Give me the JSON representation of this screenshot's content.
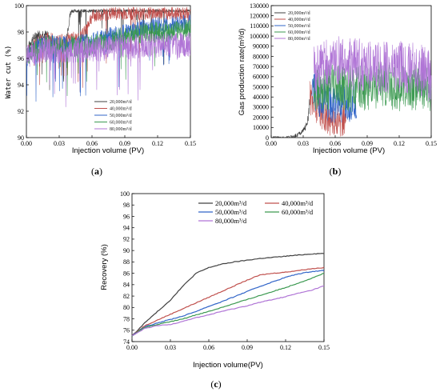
{
  "chart_data": [
    {
      "panel": "a",
      "type": "line",
      "xlabel": "Injection volume (PV)",
      "ylabel": "Water cut (%)",
      "xlim": [
        0.0,
        0.15
      ],
      "ylim": [
        90,
        100
      ],
      "xticks": [
        "0.00",
        "0.03",
        "0.06",
        "0.09",
        "0.12",
        "0.15"
      ],
      "yticks": [
        "90",
        "92",
        "94",
        "96",
        "98",
        "100"
      ],
      "legend_position": "lower-center",
      "series": [
        {
          "name": "20,000m³/d",
          "color": "#404040",
          "x": [
            0,
            0.005,
            0.01,
            0.015,
            0.02,
            0.025,
            0.03,
            0.035,
            0.04,
            0.041,
            0.05,
            0.06,
            0.08,
            0.1,
            0.12,
            0.15
          ],
          "y": [
            96.5,
            97.4,
            97.8,
            97.9,
            97.7,
            97.2,
            96.6,
            96.8,
            99.3,
            99.6,
            99.6,
            99.6,
            99.6,
            99.6,
            99.6,
            99.6
          ]
        },
        {
          "name": "40,000m³/d",
          "color": "#c0504d",
          "x": [
            0,
            0.01,
            0.02,
            0.03,
            0.04,
            0.05,
            0.06,
            0.07,
            0.08,
            0.09,
            0.1,
            0.12,
            0.15
          ],
          "y": [
            96.4,
            97.2,
            97.5,
            97.3,
            97.5,
            97.6,
            99.2,
            99.3,
            99.4,
            99.4,
            99.4,
            99.4,
            99.4
          ]
        },
        {
          "name": "50,000m³/d",
          "color": "#3064c8",
          "x": [
            0,
            0.01,
            0.02,
            0.03,
            0.04,
            0.06,
            0.08,
            0.1,
            0.12,
            0.14,
            0.15
          ],
          "y": [
            96.3,
            97.0,
            97.2,
            97.0,
            97.1,
            97.3,
            97.8,
            98.2,
            98.5,
            98.6,
            98.8
          ]
        },
        {
          "name": "60,000m³/d",
          "color": "#3d9a52",
          "x": [
            0,
            0.01,
            0.02,
            0.03,
            0.04,
            0.06,
            0.08,
            0.1,
            0.12,
            0.14,
            0.15
          ],
          "y": [
            96.2,
            96.8,
            97.0,
            96.8,
            96.9,
            97.0,
            97.4,
            97.8,
            98.0,
            98.1,
            98.3
          ]
        },
        {
          "name": "80,000m³/d",
          "color": "#b075d6",
          "x": [
            0,
            0.01,
            0.02,
            0.03,
            0.04,
            0.06,
            0.08,
            0.1,
            0.12,
            0.14,
            0.15
          ],
          "y": [
            96.0,
            96.5,
            96.7,
            96.5,
            96.6,
            96.7,
            96.8,
            96.9,
            97.0,
            97.0,
            97.1
          ]
        }
      ]
    },
    {
      "panel": "b",
      "type": "line",
      "xlabel": "Injection volume (PV)",
      "ylabel": "Gas production rate(m³/d)",
      "xlim": [
        0.0,
        0.15
      ],
      "ylim": [
        0,
        130000
      ],
      "xticks": [
        "0.00",
        "0.03",
        "0.06",
        "0.09",
        "0.12",
        "0.15"
      ],
      "yticks": [
        "0",
        "10000",
        "20000",
        "30000",
        "40000",
        "50000",
        "60000",
        "70000",
        "80000",
        "90000",
        "100000",
        "110000",
        "120000",
        "130000"
      ],
      "legend_position": "top-left",
      "series": [
        {
          "name": "20,000m³/d",
          "color": "#404040",
          "x": [
            0.0,
            0.015,
            0.02,
            0.025,
            0.03,
            0.033,
            0.035,
            0.036
          ],
          "y": [
            0,
            0,
            1000,
            3000,
            7000,
            12000,
            20000,
            38000
          ]
        },
        {
          "name": "40,000m³/d",
          "color": "#c0504d",
          "x": [
            0.036,
            0.04,
            0.045,
            0.05,
            0.055,
            0.06,
            0.065,
            0.07
          ],
          "y": [
            40000,
            35000,
            28000,
            22000,
            18000,
            17000,
            18000,
            20000
          ]
        },
        {
          "name": "50,000m³/d",
          "color": "#3064c8",
          "x": [
            0.038,
            0.045,
            0.055,
            0.065,
            0.075,
            0.08
          ],
          "y": [
            45000,
            40000,
            35000,
            32000,
            33000,
            35000
          ]
        },
        {
          "name": "60,000m³/d",
          "color": "#3d9a52",
          "x": [
            0.04,
            0.06,
            0.08,
            0.1,
            0.12,
            0.14,
            0.15
          ],
          "y": [
            48000,
            50000,
            47000,
            52000,
            48000,
            50000,
            45000
          ]
        },
        {
          "name": "80,000m³/d",
          "color": "#b075d6",
          "x": [
            0.04,
            0.06,
            0.08,
            0.1,
            0.12,
            0.14,
            0.15
          ],
          "y": [
            65000,
            75000,
            72000,
            68000,
            70000,
            66000,
            60000
          ]
        }
      ]
    },
    {
      "panel": "c",
      "type": "line",
      "xlabel": "Injection volume(PV)",
      "ylabel": "Recovery (%)",
      "xlim": [
        0.0,
        0.15
      ],
      "ylim": [
        74,
        100
      ],
      "xticks": [
        "0.00",
        "0.03",
        "0.06",
        "0.09",
        "0.12",
        "0.15"
      ],
      "yticks": [
        "74",
        "76",
        "78",
        "80",
        "82",
        "84",
        "86",
        "88",
        "90",
        "92",
        "94",
        "96",
        "98",
        "100"
      ],
      "legend_position": "top-right",
      "series": [
        {
          "name": "20,000m³/d",
          "color": "#404040",
          "x": [
            0,
            0.01,
            0.02,
            0.03,
            0.04,
            0.05,
            0.06,
            0.07,
            0.08,
            0.09,
            0.1,
            0.11,
            0.12,
            0.13,
            0.14,
            0.15
          ],
          "y": [
            75,
            77.3,
            79.3,
            81.3,
            83.8,
            86.0,
            87.0,
            87.6,
            88.0,
            88.3,
            88.6,
            88.8,
            89.0,
            89.2,
            89.4,
            89.5
          ]
        },
        {
          "name": "40,000m³/d",
          "color": "#c0504d",
          "x": [
            0,
            0.01,
            0.02,
            0.03,
            0.04,
            0.05,
            0.06,
            0.07,
            0.08,
            0.09,
            0.1,
            0.11,
            0.12,
            0.13,
            0.14,
            0.15
          ],
          "y": [
            75,
            76.8,
            77.8,
            78.8,
            79.8,
            80.8,
            81.8,
            82.8,
            83.8,
            84.8,
            85.7,
            86.0,
            86.2,
            86.5,
            86.8,
            87.0
          ]
        },
        {
          "name": "50,000m³/d",
          "color": "#3064c8",
          "x": [
            0,
            0.01,
            0.02,
            0.03,
            0.04,
            0.05,
            0.06,
            0.07,
            0.08,
            0.09,
            0.1,
            0.11,
            0.12,
            0.13,
            0.14,
            0.15
          ],
          "y": [
            75,
            76.6,
            77.3,
            77.9,
            78.5,
            79.3,
            80.2,
            81.0,
            81.9,
            82.8,
            83.7,
            84.5,
            85.3,
            85.9,
            86.3,
            86.5
          ]
        },
        {
          "name": "60,000m³/d",
          "color": "#3d9a52",
          "x": [
            0,
            0.01,
            0.02,
            0.03,
            0.04,
            0.05,
            0.06,
            0.07,
            0.08,
            0.09,
            0.1,
            0.11,
            0.12,
            0.13,
            0.14,
            0.15
          ],
          "y": [
            75,
            76.5,
            77.0,
            77.5,
            78.0,
            78.7,
            79.3,
            80.0,
            80.7,
            81.4,
            82.1,
            82.8,
            83.5,
            84.3,
            85.1,
            86.0
          ]
        },
        {
          "name": "80,000m³/d",
          "color": "#b075d6",
          "x": [
            0,
            0.01,
            0.02,
            0.03,
            0.04,
            0.05,
            0.06,
            0.07,
            0.08,
            0.09,
            0.1,
            0.11,
            0.12,
            0.13,
            0.14,
            0.15
          ],
          "y": [
            75,
            76.3,
            76.8,
            77.0,
            77.6,
            78.2,
            78.7,
            79.3,
            79.8,
            80.3,
            80.9,
            81.4,
            81.9,
            82.5,
            83.0,
            83.8
          ]
        }
      ]
    }
  ],
  "captions": {
    "a": "(a)",
    "b": "(b)",
    "c": "(c)"
  }
}
